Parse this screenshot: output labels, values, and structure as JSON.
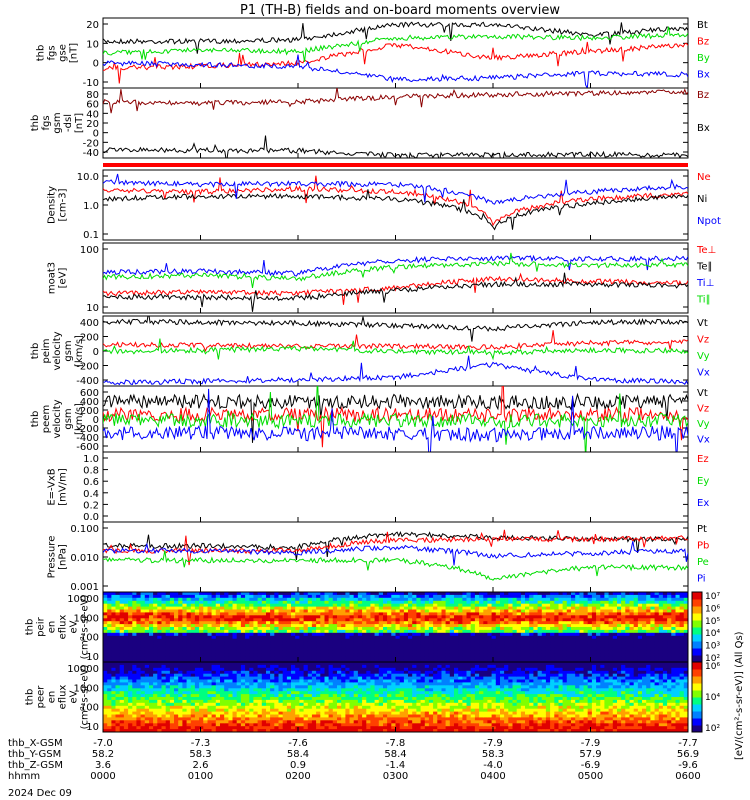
{
  "title": "P1 (TH-B) fields and on-board moments overview",
  "date_label": "2024 Dec 09",
  "colorbar_label": "[eV/(cm²-s-sr-eV)] (All Qs)",
  "colorbar_ticks": [
    "10²",
    "10³",
    "10⁴",
    "10⁵",
    "10⁶",
    "10⁷"
  ],
  "colorbar_ticks_lower": [
    "10²",
    "10⁴",
    "10⁶"
  ],
  "colors": {
    "black": "#000000",
    "red": "#ff0000",
    "green": "#00dd00",
    "blue": "#0000ff",
    "darkred": "#8b0000"
  },
  "x_ticks": [
    "0000",
    "0100",
    "0200",
    "0300",
    "0400",
    "0500",
    "0600"
  ],
  "orbit": {
    "rows": [
      {
        "label": "thb_X-GSM",
        "values": [
          "-7.0",
          "-7.3",
          "-7.6",
          "-7.8",
          "-7.9",
          "-7.9",
          "-7.7"
        ]
      },
      {
        "label": "thb_Y-GSM",
        "values": [
          "58.2",
          "58.3",
          "58.4",
          "58.4",
          "58.3",
          "57.9",
          "56.9"
        ]
      },
      {
        "label": "thb_Z-GSM",
        "values": [
          "3.6",
          "2.6",
          "0.9",
          "-1.4",
          "-4.0",
          "-6.9",
          "-9.6"
        ]
      },
      {
        "label": "hhmm",
        "values": [
          "0000",
          "0100",
          "0200",
          "0300",
          "0400",
          "0500",
          "0600"
        ]
      }
    ]
  },
  "chart_data": [
    {
      "type": "line",
      "ylabel": [
        "thb",
        "fgs",
        "gse",
        "[nT]"
      ],
      "yticks": [
        "20",
        "10",
        "0",
        "-10"
      ],
      "ylim": [
        -18,
        24
      ],
      "series": [
        {
          "name": "Bt",
          "color": "black",
          "values": [
            10,
            10,
            11,
            20,
            20,
            14,
            18
          ]
        },
        {
          "name": "Bz",
          "color": "red",
          "values": [
            -6,
            -5,
            -3,
            8,
            0,
            4,
            8
          ]
        },
        {
          "name": "By",
          "color": "green",
          "values": [
            3,
            5,
            4,
            12,
            13,
            12,
            14
          ]
        },
        {
          "name": "Bx",
          "color": "blue",
          "values": [
            -3,
            -4,
            -5,
            -13,
            -12,
            -9,
            -10
          ]
        }
      ]
    },
    {
      "type": "line",
      "ylabel": [
        "thb",
        "fgs",
        "gsm",
        "-dsl",
        "[nT]"
      ],
      "yticks": [
        "80",
        "60",
        "40",
        "20",
        "0",
        "-20",
        "-40"
      ],
      "ylim": [
        -50,
        85
      ],
      "series": [
        {
          "name": "Bz",
          "color": "darkred",
          "values": [
            58,
            56,
            58,
            68,
            72,
            75,
            78
          ]
        },
        {
          "name": "Bx",
          "color": "black",
          "values": [
            -35,
            -35,
            -36,
            -45,
            -44,
            -43,
            -45
          ]
        }
      ]
    },
    {
      "type": "line",
      "ylabel": [
        "Density",
        "[cm-3]"
      ],
      "yticks": [
        "10.0",
        "1.0",
        "0.1"
      ],
      "log": true,
      "series": [
        {
          "name": "Ne",
          "color": "red",
          "values": [
            7,
            6,
            8,
            6,
            0.3,
            3,
            5
          ]
        },
        {
          "name": "Ni",
          "color": "black",
          "values": [
            3,
            4,
            4,
            3,
            0.2,
            2,
            4
          ]
        },
        {
          "name": "Npot",
          "color": "blue",
          "values": [
            15,
            12,
            13,
            12,
            2,
            6,
            10
          ]
        }
      ]
    },
    {
      "type": "line",
      "ylabel": [
        "moat3",
        "[eV]"
      ],
      "yticks": [
        "100",
        "10"
      ],
      "log": true,
      "series": [
        {
          "name": "Te⊥",
          "color": "red",
          "values": [
            20,
            22,
            20,
            30,
            60,
            50,
            45
          ]
        },
        {
          "name": "Te∥",
          "color": "black",
          "values": [
            15,
            15,
            14,
            25,
            40,
            40,
            35
          ]
        },
        {
          "name": "Ti⊥",
          "color": "blue",
          "values": [
            100,
            110,
            90,
            250,
            300,
            280,
            290
          ]
        },
        {
          "name": "Ti∥",
          "color": "green",
          "values": [
            70,
            80,
            60,
            150,
            200,
            170,
            180
          ]
        }
      ]
    },
    {
      "type": "line",
      "ylabel": [
        "thb",
        "peim",
        "velocity",
        "gsm",
        "[km/s]"
      ],
      "yticks": [
        "400",
        "200",
        "0",
        "-200",
        "-400"
      ],
      "ylim": [
        -420,
        460
      ],
      "series": [
        {
          "name": "Vt",
          "color": "black",
          "values": [
            390,
            380,
            370,
            340,
            300,
            380,
            390
          ]
        },
        {
          "name": "Vz",
          "color": "red",
          "values": [
            100,
            90,
            80,
            80,
            70,
            120,
            130
          ]
        },
        {
          "name": "Vy",
          "color": "green",
          "values": [
            10,
            30,
            50,
            10,
            0,
            30,
            20
          ]
        },
        {
          "name": "Vx",
          "color": "blue",
          "values": [
            -380,
            -360,
            -340,
            -310,
            -150,
            -340,
            -370
          ]
        }
      ]
    },
    {
      "type": "line",
      "ylabel": [
        "thb",
        "peem",
        "velocity",
        "gsm",
        "[km/s]"
      ],
      "yticks": [
        "600",
        "400",
        "200",
        "0",
        "-200",
        "-400",
        "-600"
      ],
      "ylim": [
        -620,
        620
      ],
      "series": [
        {
          "name": "Vt",
          "color": "black",
          "values": [
            330,
            330,
            320,
            330,
            320,
            300,
            340
          ]
        },
        {
          "name": "Vz",
          "color": "red",
          "values": [
            80,
            80,
            80,
            80,
            70,
            80,
            90
          ]
        },
        {
          "name": "Vy",
          "color": "green",
          "values": [
            -30,
            -20,
            -40,
            -20,
            -40,
            -30,
            -20
          ]
        },
        {
          "name": "Vx",
          "color": "blue",
          "values": [
            -270,
            -260,
            -280,
            -270,
            -300,
            -270,
            -260
          ]
        }
      ]
    },
    {
      "type": "line",
      "ylabel": [
        "E=-VxB",
        "[mV/m]"
      ],
      "yticks": [
        "1.0",
        "0.8",
        "0.6",
        "0.4",
        "0.2",
        "0.0"
      ],
      "ylim": [
        -0.05,
        1.05
      ],
      "series": [
        {
          "name": "Ez",
          "color": "red",
          "values": []
        },
        {
          "name": "Ey",
          "color": "green",
          "values": []
        },
        {
          "name": "Ex",
          "color": "blue",
          "values": []
        }
      ]
    },
    {
      "type": "line",
      "ylabel": [
        "Pressure",
        "[nPa]"
      ],
      "yticks": [
        "0.100",
        "0.010",
        "0.001"
      ],
      "log": true,
      "series": [
        {
          "name": "Pt",
          "color": "black",
          "values": [
            0.08,
            0.08,
            0.07,
            0.25,
            0.18,
            0.15,
            0.16
          ]
        },
        {
          "name": "Pb",
          "color": "red",
          "values": [
            0.05,
            0.05,
            0.05,
            0.14,
            0.15,
            0.15,
            0.17
          ]
        },
        {
          "name": "Pe",
          "color": "green",
          "values": [
            0.02,
            0.02,
            0.02,
            0.02,
            0.003,
            0.01,
            0.01
          ]
        },
        {
          "name": "Pi",
          "color": "blue",
          "values": [
            0.05,
            0.05,
            0.04,
            0.07,
            0.03,
            0.04,
            0.05
          ]
        }
      ]
    },
    {
      "type": "heatmap",
      "ylabel": [
        "thb",
        "peir",
        "en",
        "eflux",
        "eV",
        "(cm²-s-sr-eV)"
      ],
      "yticks": [
        "10000",
        "1000",
        "100",
        "10"
      ]
    },
    {
      "type": "heatmap",
      "ylabel": [
        "thb",
        "peer",
        "en",
        "eflux",
        "eV",
        "(cm²-s-sr-eV)"
      ],
      "yticks": [
        "10000",
        "1000",
        "100",
        "10"
      ]
    }
  ]
}
